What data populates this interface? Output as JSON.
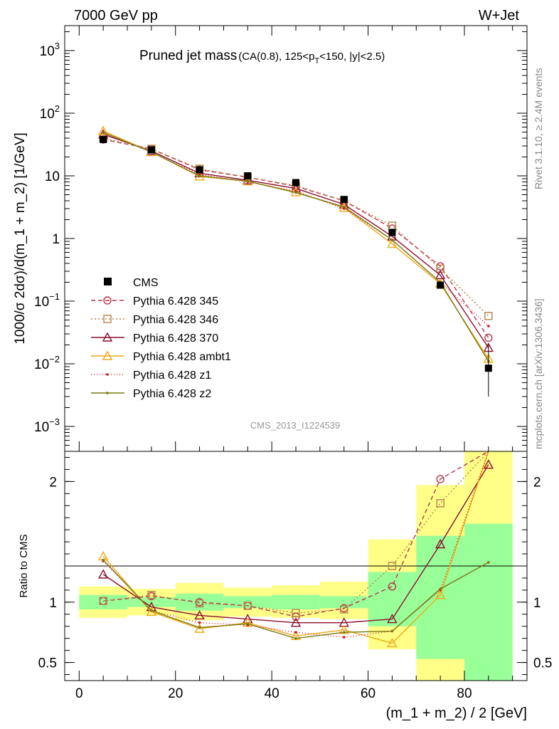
{
  "header": {
    "left": "7000 GeV pp",
    "right": "W+Jet",
    "title_main": "Pruned jet mass",
    "title_sub_pre": "(CA(0.8), 125<p",
    "title_sub_sub": "T",
    "title_sub_post": "<150, |y|<2.5)",
    "side_top": "Rivet 3.1.10, ≥ 2.4M events",
    "side_bottom": "mcplots.cern.ch [arXiv:1306.3436]",
    "watermark": "CMS_2013_I1224539"
  },
  "chart_data": [
    {
      "type": "line",
      "panel": "main",
      "ylabel": "1000/σ 2dσ)/d(m_1 + m_2) [1/GeV]",
      "yscale": "log",
      "ylim": [
        0.0004,
        2500
      ],
      "xlim": [
        -3,
        93
      ],
      "ytick_labels": [
        {
          "base": "10",
          "exp": "3",
          "v": 1000
        },
        {
          "base": "10",
          "exp": "2",
          "v": 100
        },
        {
          "base": "10",
          "exp": "",
          "v": 10
        },
        {
          "base": "1",
          "exp": "",
          "v": 1
        },
        {
          "base": "10",
          "exp": "−1",
          "v": 0.1
        },
        {
          "base": "10",
          "exp": "−2",
          "v": 0.01
        },
        {
          "base": "10",
          "exp": "−3",
          "v": 0.001
        }
      ],
      "x": [
        5,
        15,
        25,
        35,
        45,
        55,
        65,
        75,
        85
      ],
      "cms": {
        "name": "CMS",
        "values": [
          38,
          26,
          12.5,
          10,
          7.8,
          4.2,
          1.25,
          0.18,
          0.0085
        ],
        "err_low": [
          35,
          24,
          11.5,
          9.2,
          7.1,
          3.8,
          1.1,
          0.16,
          0.003
        ],
        "err_high": [
          41,
          28,
          13.5,
          10.8,
          8.5,
          4.6,
          1.4,
          0.2,
          0.02
        ]
      },
      "series": [
        {
          "name": "Pythia 6.428 345",
          "color": "#b5364a",
          "dash": "6,4",
          "marker": "circle",
          "values": [
            38,
            27,
            12.5,
            9.5,
            6.8,
            4.0,
            1.45,
            0.36,
            0.026
          ]
        },
        {
          "name": "Pythia 6.428 346",
          "color": "#b5834a",
          "dash": "2,3",
          "marker": "square",
          "values": [
            40,
            27,
            13,
            9.5,
            7.0,
            4.0,
            1.6,
            0.33,
            0.058
          ]
        },
        {
          "name": "Pythia 6.428 370",
          "color": "#8b0f2f",
          "dash": "",
          "marker": "triangle",
          "values": [
            46,
            25,
            11,
            8.5,
            6.3,
            3.5,
            1.08,
            0.26,
            0.018
          ]
        },
        {
          "name": "Pythia 6.428 ambt1",
          "color": "#f0a818",
          "dash": "",
          "marker": "triangle",
          "values": [
            52,
            24,
            9.8,
            8.2,
            5.5,
            3.1,
            0.82,
            0.19,
            0.012
          ]
        },
        {
          "name": "Pythia 6.428 z1",
          "color": "#d81818",
          "dash": "1,3",
          "marker": "dot",
          "values": [
            50,
            24,
            10.5,
            8.0,
            5.7,
            3.0,
            0.95,
            0.2,
            0.04
          ]
        },
        {
          "name": "Pythia 6.428 z2",
          "color": "#7a7a14",
          "dash": "",
          "marker": "dot",
          "values": [
            49,
            24,
            10,
            8.2,
            5.4,
            3.2,
            0.95,
            0.2,
            0.011
          ]
        }
      ]
    },
    {
      "type": "line",
      "panel": "ratio",
      "ylabel": "Ratio to CMS",
      "ylim": [
        0.35,
        2.25
      ],
      "xlim": [
        -3,
        93
      ],
      "xlabel": "(m_1 + m_2) / 2 [GeV]",
      "xticks": [
        0,
        20,
        40,
        60,
        80
      ],
      "xtick_labels": [
        "0",
        "20",
        "40",
        "60",
        "80"
      ],
      "yticks": [
        0.5,
        1,
        2
      ],
      "ytick_labels": [
        "0.5",
        "1",
        "2"
      ],
      "bands": {
        "x_edges": [
          [
            0,
            10
          ],
          [
            10,
            20
          ],
          [
            20,
            30
          ],
          [
            30,
            40
          ],
          [
            40,
            50
          ],
          [
            50,
            60
          ],
          [
            60,
            70
          ],
          [
            70,
            80
          ],
          [
            80,
            90
          ]
        ],
        "inner": [
          [
            0.94,
            1.06
          ],
          [
            0.96,
            1.04
          ],
          [
            0.93,
            1.07
          ],
          [
            0.95,
            1.05
          ],
          [
            0.94,
            1.06
          ],
          [
            0.95,
            1.05
          ],
          [
            0.8,
            1.25
          ],
          [
            0.53,
            1.55
          ],
          [
            0.35,
            1.65
          ]
        ],
        "outer": [
          [
            0.87,
            1.13
          ],
          [
            0.89,
            1.11
          ],
          [
            0.85,
            1.16
          ],
          [
            0.88,
            1.12
          ],
          [
            0.87,
            1.14
          ],
          [
            0.86,
            1.17
          ],
          [
            0.61,
            1.52
          ],
          [
            0.35,
            1.97
          ],
          [
            0.35,
            2.25
          ]
        ]
      },
      "series": [
        {
          "name": "Pythia 6.428 345",
          "values": [
            1.01,
            1.05,
            1.0,
            0.97,
            0.88,
            0.95,
            1.13,
            2.02,
            2.9
          ]
        },
        {
          "name": "Pythia 6.428 346",
          "values": [
            1.01,
            1.06,
            0.99,
            0.97,
            0.91,
            0.94,
            1.3,
            1.82,
            2.9
          ]
        },
        {
          "name": "Pythia 6.428 370",
          "values": [
            1.23,
            0.96,
            0.89,
            0.86,
            0.83,
            0.83,
            0.86,
            1.48,
            2.14
          ]
        },
        {
          "name": "Pythia 6.428 ambt1",
          "values": [
            1.38,
            0.92,
            0.78,
            0.83,
            0.72,
            0.77,
            0.66,
            1.06,
            2.9
          ]
        },
        {
          "name": "Pythia 6.428 z1",
          "values": [
            1.34,
            0.93,
            0.83,
            0.81,
            0.75,
            0.71,
            0.76,
            1.1,
            2.9
          ]
        },
        {
          "name": "Pythia 6.428 z2",
          "values": [
            1.35,
            0.93,
            0.79,
            0.82,
            0.7,
            0.75,
            0.76,
            1.11,
            1.33
          ]
        }
      ]
    }
  ]
}
